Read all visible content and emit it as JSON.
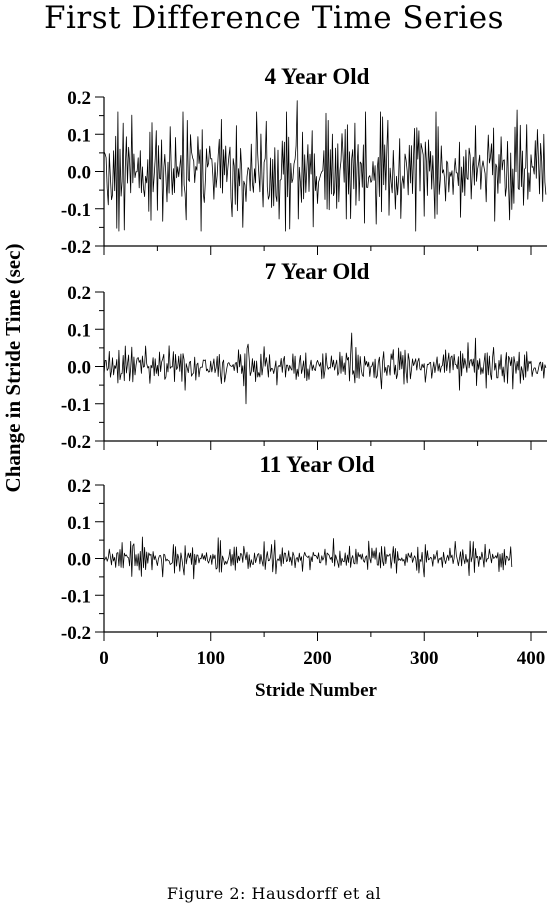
{
  "title": "First Difference Time Series",
  "caption": "Figure 2: Hausdorff et al",
  "chart_data": [
    {
      "type": "line",
      "title": "4 Year Old",
      "xlabel": "Stride Number",
      "ylabel": "Change in Stride Time (sec)",
      "xlim": [
        0,
        415
      ],
      "ylim": [
        -0.2,
        0.2
      ],
      "yticks": [
        "0.2",
        "0.1",
        "0.0",
        "-0.1",
        "-0.2"
      ],
      "xticks": [
        "0",
        "100",
        "200",
        "300",
        "400"
      ],
      "n_points": 415,
      "std": 0.06,
      "extremes": [
        [
          18,
          0.13
        ],
        [
          74,
          0.16
        ],
        [
          77,
          -0.13
        ],
        [
          110,
          0.14
        ],
        [
          130,
          -0.15
        ],
        [
          170,
          -0.16
        ],
        [
          181,
          0.19
        ],
        [
          235,
          0.13
        ],
        [
          300,
          -0.12
        ],
        [
          380,
          -0.13
        ],
        [
          387,
          0.165
        ],
        [
          412,
          0.1
        ]
      ],
      "line_color": "#000000"
    },
    {
      "type": "line",
      "title": "7 Year Old",
      "xlabel": "Stride Number",
      "ylabel": "Change in Stride Time (sec)",
      "xlim": [
        0,
        415
      ],
      "ylim": [
        -0.2,
        0.2
      ],
      "yticks": [
        "0.2",
        "0.1",
        "0.0",
        "-0.1",
        "-0.2"
      ],
      "xticks": [
        "0",
        "100",
        "200",
        "300",
        "400"
      ],
      "n_points": 415,
      "std": 0.022,
      "extremes": [
        [
          20,
          0.055
        ],
        [
          133,
          -0.1
        ],
        [
          135,
          0.06
        ],
        [
          232,
          0.09
        ],
        [
          260,
          -0.06
        ],
        [
          390,
          -0.045
        ]
      ],
      "line_color": "#000000"
    },
    {
      "type": "line",
      "title": "11 Year Old",
      "xlabel": "Stride Number",
      "ylabel": "Change in Stride Time (sec)",
      "xlim": [
        0,
        415
      ],
      "ylim": [
        -0.2,
        0.2
      ],
      "yticks": [
        "0.2",
        "0.1",
        "0.0",
        "-0.1",
        "-0.2"
      ],
      "xticks": [
        "0",
        "100",
        "200",
        "300",
        "400"
      ],
      "n_points": 383,
      "std": 0.016,
      "extremes": [
        [
          28,
          0.04
        ],
        [
          55,
          -0.05
        ],
        [
          75,
          -0.045
        ],
        [
          160,
          0.05
        ],
        [
          300,
          -0.05
        ]
      ],
      "line_color": "#000000"
    }
  ]
}
